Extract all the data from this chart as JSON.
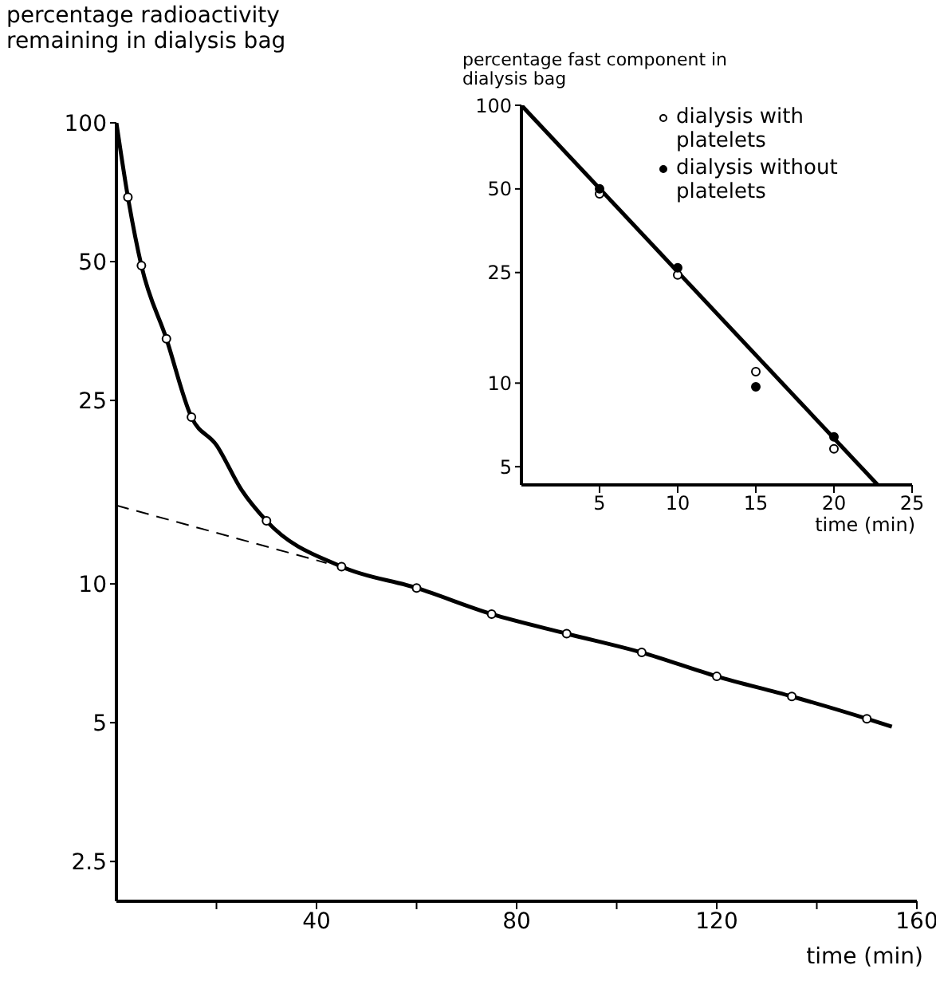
{
  "chart_data": [
    {
      "type": "line",
      "xlabel": "time (min)",
      "ylabel": "percentage radioactivity remaining in dialysis bag",
      "log": "y",
      "grid": false,
      "legend": false,
      "xlim": [
        0,
        160
      ],
      "xticks": [
        {
          "value": 20,
          "label": null
        },
        40,
        {
          "value": 60,
          "label": null
        },
        80,
        {
          "value": 100,
          "label": null
        },
        120,
        {
          "value": 140,
          "label": null
        },
        160
      ],
      "ylim": [
        2.05,
        100
      ],
      "yticks": [
        2.5,
        5,
        10,
        25,
        50,
        100
      ],
      "series": [
        {
          "color": "#000000",
          "line_style": "solid",
          "marker": "none",
          "x": [
            0,
            2.3,
            5,
            10,
            15,
            20,
            25,
            30,
            45,
            60,
            75,
            90,
            105,
            120,
            135,
            150,
            155
          ],
          "values": [
            100,
            69,
            49,
            34,
            23,
            20,
            16,
            13.7,
            10.9,
            9.8,
            8.6,
            7.8,
            7.1,
            6.3,
            5.7,
            5.1,
            4.9
          ]
        },
        {
          "color": "#000000",
          "line_style": "dashed",
          "marker": "none",
          "x": [
            0,
            42
          ],
          "values": [
            14.8,
            11.1
          ]
        },
        {
          "type": "scatter",
          "color": "#ffffff",
          "marker": "circle",
          "x": [
            2.3,
            5,
            10,
            15,
            30,
            45,
            60,
            75,
            90,
            105,
            120,
            135,
            150
          ],
          "values": [
            69,
            49,
            34,
            23,
            13.7,
            10.9,
            9.8,
            8.6,
            7.8,
            7.1,
            6.3,
            5.7,
            5.1
          ]
        }
      ]
    },
    {
      "type": "scatter",
      "xlabel": "time (min)",
      "ylabel": "percentage fast component in dialysis bag",
      "log": "y",
      "grid": false,
      "legend": "top right",
      "xlim": [
        0,
        25
      ],
      "xticks": [
        5,
        10,
        15,
        20,
        25
      ],
      "ylim": [
        4.3,
        100
      ],
      "yticks": [
        5,
        10,
        25,
        50,
        100
      ],
      "series": [
        {
          "type": "line",
          "color": "#000000",
          "line_style": "solid",
          "marker": "none",
          "x": [
            0,
            22.8
          ],
          "values": [
            100,
            4.3
          ]
        },
        {
          "name": "dialysis with platelets",
          "color": "#ffffff",
          "marker": "circle",
          "x": [
            5,
            10,
            15,
            20
          ],
          "values": [
            48,
            24.5,
            11,
            5.8
          ]
        },
        {
          "name": "dialysis without platelets",
          "color": "#000000",
          "marker": "circle",
          "x": [
            5,
            10,
            15,
            20
          ],
          "values": [
            50,
            26,
            9.7,
            6.4
          ]
        }
      ]
    }
  ]
}
